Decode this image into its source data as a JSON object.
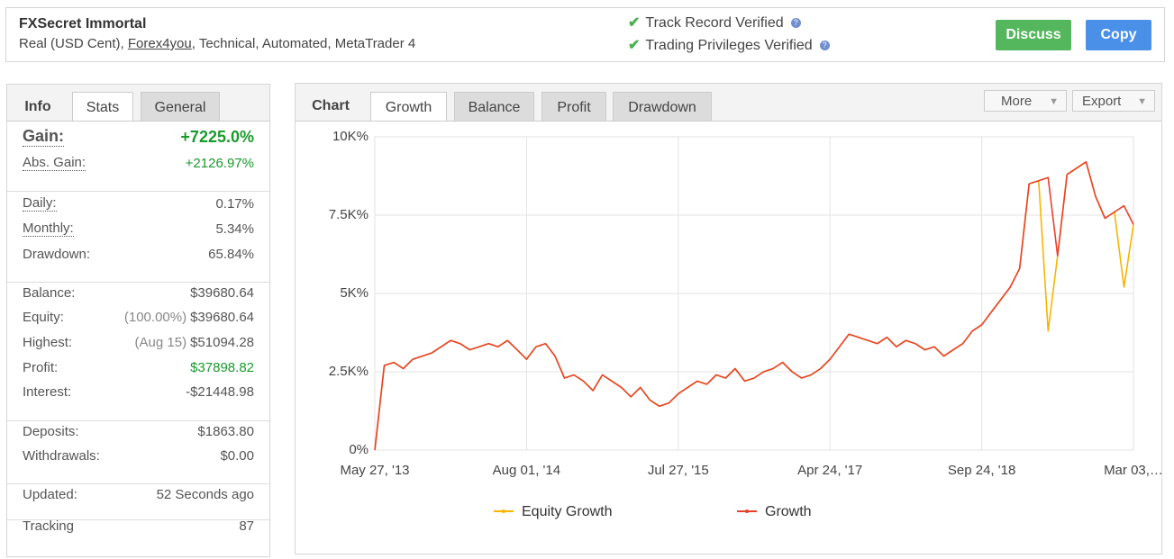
{
  "header": {
    "title": "FXSecret Immortal",
    "subtitle": [
      "Real (USD Cent), ",
      "Forex4you",
      ", Technical, Automated, MetaTrader 4"
    ],
    "verifications": [
      "Track Record Verified",
      "Trading Privileges Verified"
    ],
    "buttons": [
      "Discuss",
      "Copy"
    ]
  },
  "info_panel": {
    "tabs": [
      "Info",
      "Stats",
      "General"
    ],
    "groups": [
      [
        {
          "label": "Gain:",
          "value": "+7225.0%"
        },
        {
          "label": "Abs. Gain:",
          "value": "+2126.97%"
        }
      ],
      [
        {
          "label": "Daily:",
          "value": "0.17%"
        },
        {
          "label": "Monthly:",
          "value": "5.34%"
        },
        {
          "label": "Drawdown:",
          "value": "65.84%"
        }
      ],
      [
        {
          "label": "Balance:",
          "value": "$39680.64"
        },
        {
          "label": "Equity:",
          "note": "(100.00%)",
          "value": "$39680.64"
        },
        {
          "label": "Highest:",
          "note": "(Aug 15)",
          "value": "$51094.28"
        },
        {
          "label": "Profit:",
          "value": "$37898.82"
        },
        {
          "label": "Interest:",
          "value": "-$21448.98"
        }
      ],
      [
        {
          "label": "Deposits:",
          "value": "$1863.80"
        },
        {
          "label": "Withdrawals:",
          "value": "$0.00"
        }
      ],
      [
        {
          "label": "Updated:",
          "value": "52 Seconds ago"
        }
      ],
      [
        {
          "label": "Tracking",
          "value": "87"
        }
      ]
    ]
  },
  "chart_panel": {
    "label": "Chart",
    "tabs": [
      "Growth",
      "Balance",
      "Profit",
      "Drawdown"
    ],
    "menus": [
      "More",
      "Export"
    ]
  },
  "chart_data": {
    "type": "line",
    "series": [
      {
        "name": "Equity Growth",
        "color": "#f7b500",
        "values": [
          0,
          2700,
          2800,
          2600,
          2900,
          3000,
          3100,
          3300,
          3500,
          3400,
          3200,
          3300,
          3400,
          3300,
          3500,
          3200,
          2900,
          3300,
          3400,
          3000,
          2300,
          2400,
          2200,
          1900,
          2400,
          2200,
          2000,
          1700,
          2000,
          1600,
          1400,
          1500,
          1800,
          2000,
          2200,
          2100,
          2400,
          2300,
          2600,
          2200,
          2300,
          2500,
          2600,
          2800,
          2500,
          2300,
          2400,
          2600,
          2900,
          3300,
          3700,
          3600,
          3500,
          3400,
          3600,
          3300,
          3500,
          3400,
          3200,
          3300,
          3000,
          3200,
          3400,
          3800,
          4000,
          4400,
          4800,
          5200,
          5800,
          8500,
          8600,
          3800,
          6200,
          8800,
          9000,
          9200,
          8100,
          7400,
          7600,
          5200,
          7200
        ]
      },
      {
        "name": "Growth",
        "color": "#e8412a",
        "values": [
          0,
          2700,
          2800,
          2600,
          2900,
          3000,
          3100,
          3300,
          3500,
          3400,
          3200,
          3300,
          3400,
          3300,
          3500,
          3200,
          2900,
          3300,
          3400,
          3000,
          2300,
          2400,
          2200,
          1900,
          2400,
          2200,
          2000,
          1700,
          2000,
          1600,
          1400,
          1500,
          1800,
          2000,
          2200,
          2100,
          2400,
          2300,
          2600,
          2200,
          2300,
          2500,
          2600,
          2800,
          2500,
          2300,
          2400,
          2600,
          2900,
          3300,
          3700,
          3600,
          3500,
          3400,
          3600,
          3300,
          3500,
          3400,
          3200,
          3300,
          3000,
          3200,
          3400,
          3800,
          4000,
          4400,
          4800,
          5200,
          5800,
          8500,
          8600,
          8700,
          6200,
          8800,
          9000,
          9200,
          8100,
          7400,
          7600,
          7800,
          7200
        ]
      }
    ],
    "xlim": [
      0,
      80
    ],
    "xticks": [
      {
        "value": 0,
        "label": "May 27, '13"
      },
      {
        "value": 16,
        "label": "Aug 01, '14"
      },
      {
        "value": 32,
        "label": "Jul 27, '15"
      },
      {
        "value": 48,
        "label": "Apr 24, '17"
      },
      {
        "value": 64,
        "label": "Sep 24, '18"
      },
      {
        "value": 80,
        "label": "Mar 03,…"
      }
    ],
    "ylim": [
      0,
      10000
    ],
    "yticks": [
      {
        "value": 0,
        "label": "0%"
      },
      {
        "value": 2500,
        "label": "2.5K%"
      },
      {
        "value": 5000,
        "label": "5K%"
      },
      {
        "value": 7500,
        "label": "7.5K%"
      },
      {
        "value": 10000,
        "label": "10K%"
      }
    ],
    "grid": true
  }
}
